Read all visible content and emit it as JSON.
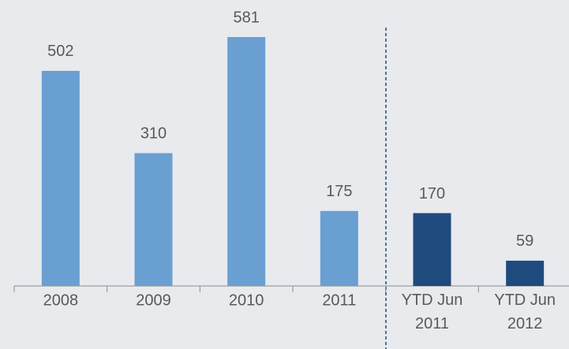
{
  "chart_data": {
    "type": "bar",
    "categories": [
      "2008",
      "2009",
      "2010",
      "2011",
      "YTD Jun 2011",
      "YTD Jun 2012"
    ],
    "values": [
      502,
      310,
      581,
      175,
      170,
      59
    ],
    "colors": [
      "#6a9fd2",
      "#6a9fd2",
      "#6a9fd2",
      "#6a9fd2",
      "#1f4a7e",
      "#1f4a7e"
    ],
    "data_labels": true
  }
}
